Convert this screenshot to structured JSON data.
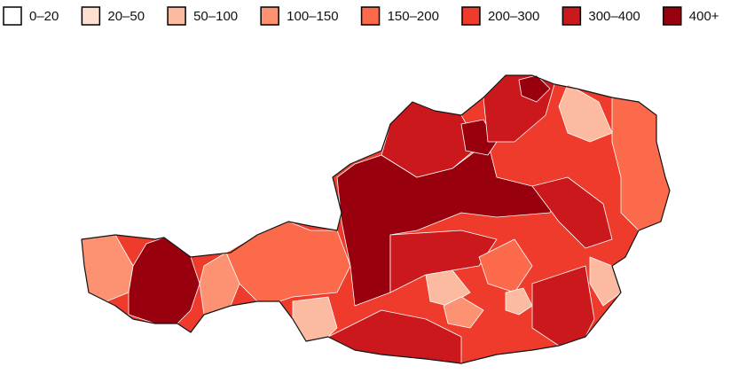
{
  "legend": {
    "items": [
      {
        "label": "0–20",
        "color": "#ffffff"
      },
      {
        "label": "20–50",
        "color": "#fee0d2"
      },
      {
        "label": "50–100",
        "color": "#fcbba1"
      },
      {
        "label": "100–150",
        "color": "#fc9272"
      },
      {
        "label": "150–200",
        "color": "#fb6a4a"
      },
      {
        "label": "200–300",
        "color": "#ef3b2c"
      },
      {
        "label": "300–400",
        "color": "#cb181d"
      },
      {
        "label": "400+",
        "color": "#99000d"
      }
    ]
  }
}
